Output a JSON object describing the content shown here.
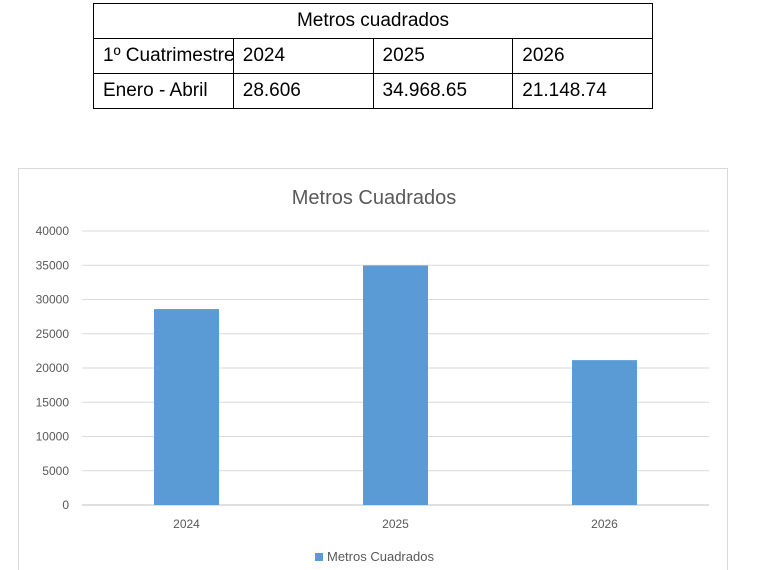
{
  "table": {
    "header": "Metros cuadrados",
    "row1": [
      "1º Cuatrimestre",
      "2024",
      "2025",
      "2026"
    ],
    "row2": [
      "Enero - Abril",
      "28.606",
      "34.968.65",
      "21.148.74"
    ]
  },
  "chart_data": {
    "type": "bar",
    "title": "Metros Cuadrados",
    "categories": [
      "2024",
      "2025",
      "2026"
    ],
    "series": [
      {
        "name": "Metros Cuadrados",
        "values": [
          28606,
          34968.65,
          21148.74
        ],
        "color": "#5b9bd5"
      }
    ],
    "ylim": [
      0,
      40000
    ],
    "yticks": [
      0,
      5000,
      10000,
      15000,
      20000,
      25000,
      30000,
      35000,
      40000
    ],
    "grid": true,
    "legend": "bottom"
  }
}
